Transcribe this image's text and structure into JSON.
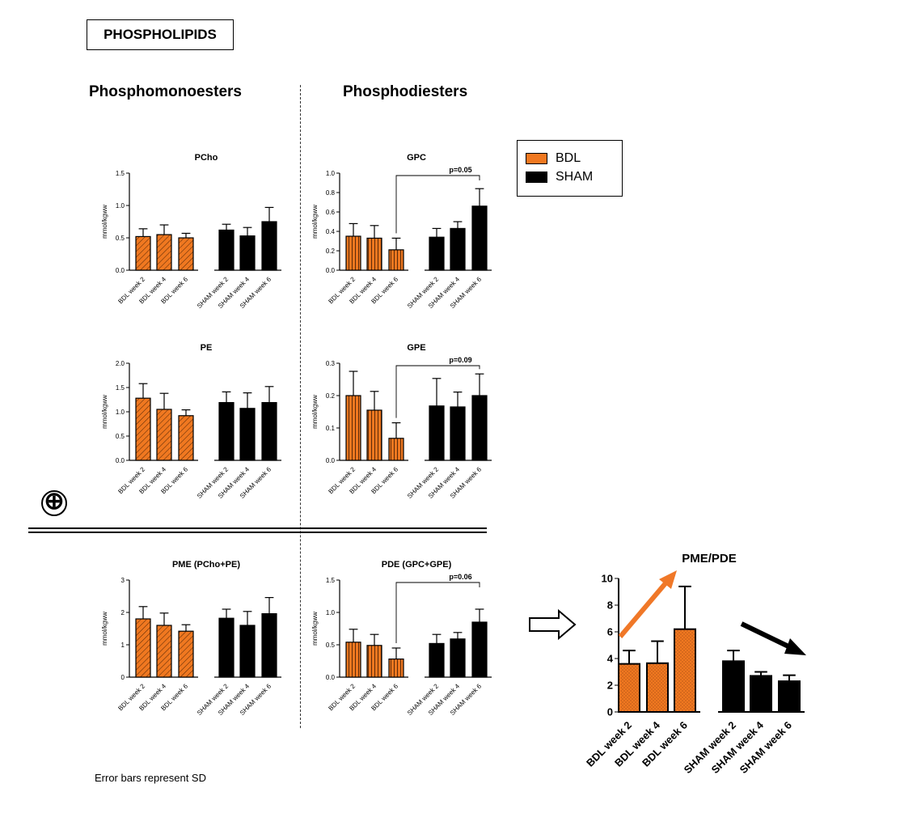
{
  "page": {
    "title": "PHOSPHOLIPIDS",
    "left_heading": "Phosphomonoesters",
    "right_heading": "Phosphodiesters",
    "footnote": "Error bars represent SD",
    "plus_symbol": "⊕"
  },
  "legend": {
    "items": [
      {
        "label": "BDL",
        "color": "#F07820"
      },
      {
        "label": "SHAM",
        "color": "#000000"
      }
    ]
  },
  "colors": {
    "bdl": "#F07820",
    "sham": "#000000",
    "arrow_up": "#F07828",
    "arrow_down": "#000000"
  },
  "chart_data": [
    {
      "id": "pcho",
      "type": "bar",
      "title": "PCho",
      "ylabel": "mmol/kgww",
      "ylim": [
        0,
        1.5
      ],
      "yticks": [
        "0.0",
        "0.5",
        "1.0",
        "1.5"
      ],
      "ytick_values": [
        0,
        0.5,
        1.0,
        1.5
      ],
      "grid": false,
      "categories": [
        "BDL week 2",
        "BDL week 4",
        "BDL week 6",
        "SHAM week 2",
        "SHAM week 4",
        "SHAM week 6"
      ],
      "values": [
        0.52,
        0.55,
        0.5,
        0.62,
        0.53,
        0.75
      ],
      "errors": [
        0.12,
        0.15,
        0.07,
        0.09,
        0.13,
        0.22
      ]
    },
    {
      "id": "gpc",
      "type": "bar",
      "title": "GPC",
      "ylabel": "mmol/kgww",
      "ylim": [
        0,
        1.0
      ],
      "yticks": [
        "0.0",
        "0.2",
        "0.4",
        "0.6",
        "0.8",
        "1.0"
      ],
      "ytick_values": [
        0,
        0.2,
        0.4,
        0.6,
        0.8,
        1.0
      ],
      "grid": false,
      "categories": [
        "BDL week 2",
        "BDL week 4",
        "BDL week 6",
        "SHAM week 2",
        "SHAM week 4",
        "SHAM week 6"
      ],
      "values": [
        0.35,
        0.33,
        0.21,
        0.34,
        0.43,
        0.66
      ],
      "errors": [
        0.13,
        0.13,
        0.12,
        0.09,
        0.07,
        0.18
      ],
      "annotation": {
        "text": "p=0.05",
        "from": 2,
        "to": 5
      }
    },
    {
      "id": "pe",
      "type": "bar",
      "title": "PE",
      "ylabel": "mmol/kgww",
      "ylim": [
        0,
        2.0
      ],
      "yticks": [
        "0.0",
        "0.5",
        "1.0",
        "1.5",
        "2.0"
      ],
      "ytick_values": [
        0,
        0.5,
        1.0,
        1.5,
        2.0
      ],
      "grid": false,
      "categories": [
        "BDL week 2",
        "BDL week 4",
        "BDL week 6",
        "SHAM week 2",
        "SHAM week 4",
        "SHAM week 6"
      ],
      "values": [
        1.28,
        1.05,
        0.92,
        1.19,
        1.07,
        1.19
      ],
      "errors": [
        0.3,
        0.33,
        0.12,
        0.22,
        0.32,
        0.33
      ]
    },
    {
      "id": "gpe",
      "type": "bar",
      "title": "GPE",
      "ylabel": "mmol/kgww",
      "ylim": [
        0,
        0.3
      ],
      "yticks": [
        "0.0",
        "0.1",
        "0.2",
        "0.3"
      ],
      "ytick_values": [
        0,
        0.1,
        0.2,
        0.3
      ],
      "grid": false,
      "categories": [
        "BDL week 2",
        "BDL week 4",
        "BDL week 6",
        "SHAM week 2",
        "SHAM week 4",
        "SHAM week 6"
      ],
      "values": [
        0.2,
        0.155,
        0.068,
        0.168,
        0.165,
        0.2
      ],
      "errors": [
        0.075,
        0.058,
        0.048,
        0.085,
        0.046,
        0.067
      ],
      "annotation": {
        "text": "p=0.09",
        "from": 2,
        "to": 5
      }
    },
    {
      "id": "pme",
      "type": "bar",
      "title": "PME (PCho+PE)",
      "ylabel": "mmol/kgww",
      "ylim": [
        0,
        3
      ],
      "yticks": [
        "0",
        "1",
        "2",
        "3"
      ],
      "ytick_values": [
        0,
        1,
        2,
        3
      ],
      "grid": false,
      "categories": [
        "BDL week 2",
        "BDL week 4",
        "BDL week 6",
        "SHAM week 2",
        "SHAM week 4",
        "SHAM week 6"
      ],
      "values": [
        1.8,
        1.6,
        1.42,
        1.82,
        1.6,
        1.96
      ],
      "errors": [
        0.38,
        0.38,
        0.2,
        0.28,
        0.43,
        0.5
      ]
    },
    {
      "id": "pde",
      "type": "bar",
      "title": "PDE (GPC+GPE)",
      "ylabel": "mmol/kgww",
      "ylim": [
        0,
        1.5
      ],
      "yticks": [
        "0.0",
        "0.5",
        "1.0",
        "1.5"
      ],
      "ytick_values": [
        0,
        0.5,
        1.0,
        1.5
      ],
      "grid": false,
      "categories": [
        "BDL week 2",
        "BDL week 4",
        "BDL week 6",
        "SHAM week 2",
        "SHAM week 4",
        "SHAM week 6"
      ],
      "values": [
        0.54,
        0.49,
        0.28,
        0.52,
        0.59,
        0.85
      ],
      "errors": [
        0.2,
        0.17,
        0.17,
        0.14,
        0.1,
        0.2
      ],
      "annotation": {
        "text": "p=0.06",
        "from": 2,
        "to": 5
      }
    },
    {
      "id": "pmepde",
      "type": "bar",
      "title": "PME/PDE",
      "ylabel": "",
      "ylim": [
        0,
        10
      ],
      "yticks": [
        "0",
        "2",
        "4",
        "6",
        "8",
        "10"
      ],
      "ytick_values": [
        0,
        2,
        4,
        6,
        8,
        10
      ],
      "grid": false,
      "categories": [
        "BDL week 2",
        "BDL week 4",
        "BDL week 6",
        "SHAM week 2",
        "SHAM week 4",
        "SHAM week 6"
      ],
      "values": [
        3.6,
        3.65,
        6.2,
        3.8,
        2.7,
        2.3
      ],
      "errors": [
        1.0,
        1.65,
        3.2,
        0.8,
        0.3,
        0.45
      ]
    }
  ]
}
